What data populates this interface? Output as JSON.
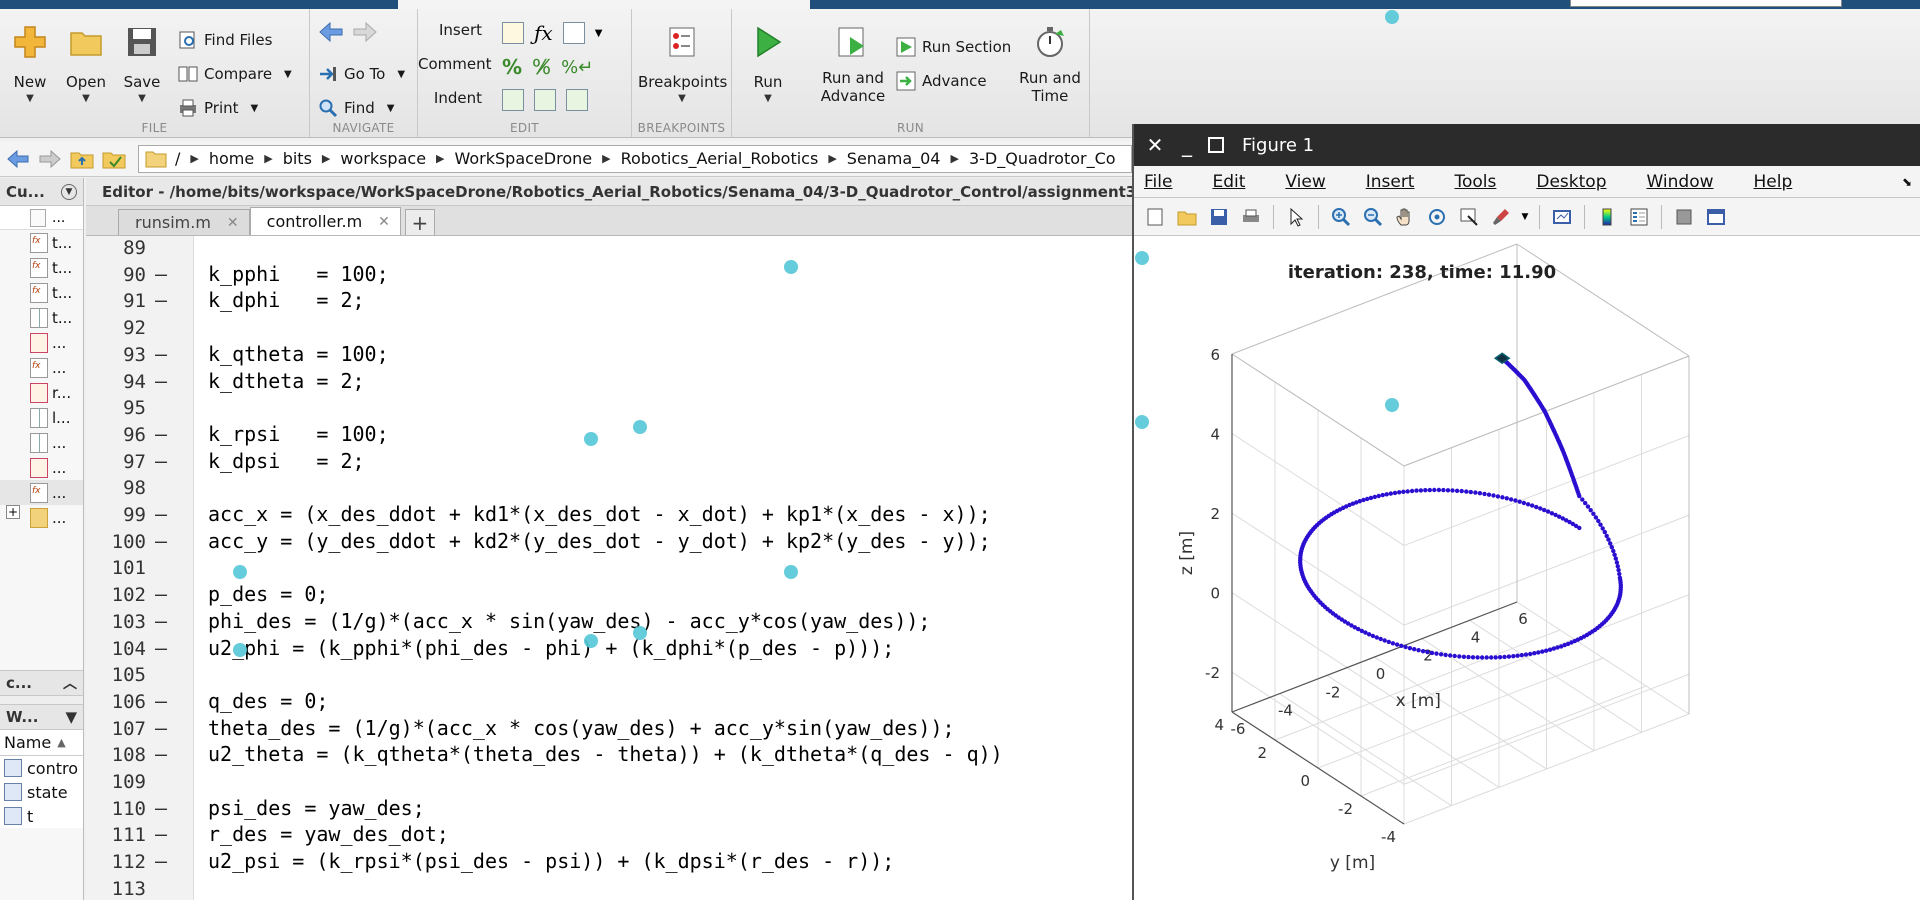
{
  "toolstrip": {
    "file": {
      "label": "FILE",
      "new": "New",
      "open": "Open",
      "save": "Save",
      "find_files": "Find Files",
      "compare": "Compare",
      "print": "Print"
    },
    "navigate": {
      "label": "NAVIGATE",
      "go_to": "Go To",
      "find": "Find"
    },
    "edit": {
      "label": "EDIT",
      "insert": "Insert",
      "comment": "Comment",
      "indent": "Indent"
    },
    "breakpoints": {
      "label": "BREAKPOINTS",
      "breakpoints": "Breakpoints"
    },
    "run": {
      "label": "RUN",
      "run": "Run",
      "run_and_advance_1": "Run and",
      "run_and_advance_2": "Advance",
      "run_section": "Run Section",
      "advance": "Advance",
      "run_and_time_1": "Run and",
      "run_and_time_2": "Time"
    }
  },
  "address": {
    "root": "/",
    "parts": [
      "home",
      "bits",
      "workspace",
      "WorkSpaceDrone",
      "Robotics_Aerial_Robotics",
      "Senama_04",
      "3-D_Quadrotor_Co"
    ]
  },
  "current_folder": {
    "title": "Cu...",
    "column": "...",
    "files": [
      {
        "icon": "fx",
        "name": "t..."
      },
      {
        "icon": "fx",
        "name": "t..."
      },
      {
        "icon": "fx",
        "name": "t..."
      },
      {
        "icon": "grid",
        "name": "t..."
      },
      {
        "icon": "mat",
        "name": "..."
      },
      {
        "icon": "fx",
        "name": "..."
      },
      {
        "icon": "mat",
        "name": "r..."
      },
      {
        "icon": "grid",
        "name": "l..."
      },
      {
        "icon": "grid",
        "name": "..."
      },
      {
        "icon": "mat",
        "name": "..."
      },
      {
        "icon": "fx",
        "name": "..."
      },
      {
        "icon": "folder",
        "name": "..."
      }
    ]
  },
  "command_panel": {
    "title": "c..."
  },
  "workspace": {
    "title": "W...",
    "column": "Name",
    "rows": [
      "contro",
      "state",
      "t"
    ]
  },
  "editor": {
    "title": "Editor - /home/bits/workspace/WorkSpaceDrone/Robotics_Aerial_Robotics/Senama_04/3-D_Quadrotor_Control/assignment3_",
    "tabs": [
      {
        "label": "runsim.m"
      },
      {
        "label": "controller.m"
      }
    ],
    "lines": [
      {
        "n": "89",
        "dash": "",
        "code": ""
      },
      {
        "n": "90",
        "dash": "–",
        "code": "k_pphi   = 100;"
      },
      {
        "n": "91",
        "dash": "–",
        "code": "k_dphi   = 2;"
      },
      {
        "n": "92",
        "dash": "",
        "code": ""
      },
      {
        "n": "93",
        "dash": "–",
        "code": "k_qtheta = 100;"
      },
      {
        "n": "94",
        "dash": "–",
        "code": "k_dtheta = 2;"
      },
      {
        "n": "95",
        "dash": "",
        "code": ""
      },
      {
        "n": "96",
        "dash": "–",
        "code": "k_rpsi   = 100;"
      },
      {
        "n": "97",
        "dash": "–",
        "code": "k_dpsi   = 2;"
      },
      {
        "n": "98",
        "dash": "",
        "code": ""
      },
      {
        "n": "99",
        "dash": "–",
        "code": "acc_x = (x_des_ddot + kd1*(x_des_dot - x_dot) + kp1*(x_des - x));"
      },
      {
        "n": "100",
        "dash": "–",
        "code": "acc_y = (y_des_ddot + kd2*(y_des_dot - y_dot) + kp2*(y_des - y));"
      },
      {
        "n": "101",
        "dash": "",
        "code": ""
      },
      {
        "n": "102",
        "dash": "–",
        "code": "p_des = 0;"
      },
      {
        "n": "103",
        "dash": "–",
        "code": "phi_des = (1/g)*(acc_x * sin(yaw_des) - acc_y*cos(yaw_des));"
      },
      {
        "n": "104",
        "dash": "–",
        "code": "u2_phi = (k_pphi*(phi_des - phi) + (k_dphi*(p_des - p)));"
      },
      {
        "n": "105",
        "dash": "",
        "code": ""
      },
      {
        "n": "106",
        "dash": "–",
        "code": "q_des = 0;"
      },
      {
        "n": "107",
        "dash": "–",
        "code": "theta_des = (1/g)*(acc_x * cos(yaw_des) + acc_y*sin(yaw_des));"
      },
      {
        "n": "108",
        "dash": "–",
        "code": "u2_theta = (k_qtheta*(theta_des - theta)) + (k_dtheta*(q_des - q))"
      },
      {
        "n": "109",
        "dash": "",
        "code": ""
      },
      {
        "n": "110",
        "dash": "–",
        "code": "psi_des = yaw_des;"
      },
      {
        "n": "111",
        "dash": "–",
        "code": "r_des = yaw_des_dot;"
      },
      {
        "n": "112",
        "dash": "–",
        "code": "u2_psi = (k_rpsi*(psi_des - psi)) + (k_dpsi*(r_des - r));"
      },
      {
        "n": "113",
        "dash": "",
        "code": ""
      }
    ]
  },
  "figure": {
    "title": "Figure 1",
    "menu": [
      "File",
      "Edit",
      "View",
      "Insert",
      "Tools",
      "Desktop",
      "Window",
      "Help"
    ]
  },
  "chart_data": {
    "type": "line",
    "title": "iteration: 238, time: 11.90",
    "xlabel": "x [m]",
    "ylabel": "y [m]",
    "zlabel": "z [m]",
    "xlim": [
      -6,
      6
    ],
    "ylim": [
      -4,
      4
    ],
    "zlim": [
      -3,
      6
    ],
    "x_ticks": [
      "-6",
      "-4",
      "-2",
      "0",
      "2",
      "4",
      "6"
    ],
    "y_ticks": [
      "-4",
      "-2",
      "0",
      "2",
      "4"
    ],
    "z_ticks": [
      "-2",
      "0",
      "2",
      "4",
      "6"
    ],
    "grid": true,
    "series_color": "#2b0fd0",
    "series": [
      {
        "trajectory": "helix",
        "x": [
          5.0,
          4.05,
          1.55,
          -1.55,
          -4.05,
          -5.0,
          -4.05,
          -1.55,
          1.55,
          4.05,
          5.0,
          4.95,
          4.8,
          4.55,
          4.2
        ],
        "y": [
          0.0,
          2.94,
          4.76,
          4.76,
          2.94,
          0.0,
          -2.94,
          -4.76,
          -4.76,
          -2.94,
          0.0,
          0.7,
          1.4,
          2.05,
          2.7
        ],
        "z": [
          0.5,
          0.5,
          0.5,
          0.5,
          0.5,
          0.5,
          0.5,
          0.5,
          0.5,
          0.5,
          1.3,
          2.2,
          3.0,
          3.6,
          4.0
        ]
      }
    ]
  },
  "overlay_color": "#53c7d6"
}
